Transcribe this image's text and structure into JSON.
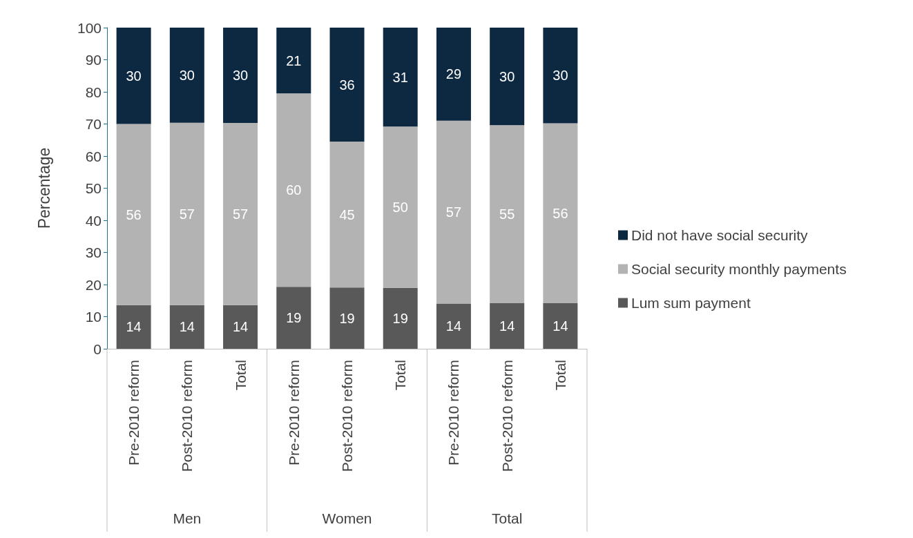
{
  "chart_data": {
    "type": "bar",
    "stacked": true,
    "ylabel": "Percentage",
    "categories": [
      "Pre-2010 reform",
      "Post-2010 reform",
      "Total",
      "Pre-2010 reform",
      "Post-2010 reform",
      "Total",
      "Pre-2010 reform",
      "Post-2010 reform",
      "Total"
    ],
    "annotations": [
      "Men",
      "Women",
      "Total"
    ],
    "series": [
      {
        "name": "Lum sum payment",
        "color": "#595959",
        "values": [
          13.6,
          13.6,
          13.6,
          19.3,
          19.1,
          19.0,
          14.1,
          14.2,
          14.2
        ],
        "value_labels": [
          "14",
          "14",
          "14",
          "19",
          "19",
          "19",
          "14",
          "14",
          "14"
        ]
      },
      {
        "name": "Social security monthly payments",
        "color": "#b3b3b3",
        "values": [
          56.4,
          56.8,
          56.7,
          60.2,
          45.4,
          50.2,
          56.9,
          55.4,
          56.0
        ],
        "value_labels": [
          "56",
          "57",
          "57",
          "60",
          "45",
          "50",
          "57",
          "55",
          "56"
        ]
      },
      {
        "name": "Did not have social security",
        "color": "#0d2841",
        "values": [
          30.0,
          29.6,
          29.7,
          20.5,
          35.5,
          30.8,
          29.0,
          30.4,
          29.8
        ],
        "value_labels": [
          "30",
          "30",
          "30",
          "21",
          "36",
          "31",
          "29",
          "30",
          "30"
        ]
      }
    ],
    "ylim": [
      0,
      100
    ],
    "yticks": [
      0,
      10,
      20,
      30,
      40,
      50,
      60,
      70,
      80,
      90,
      100
    ],
    "grid": false,
    "legend": "right"
  }
}
